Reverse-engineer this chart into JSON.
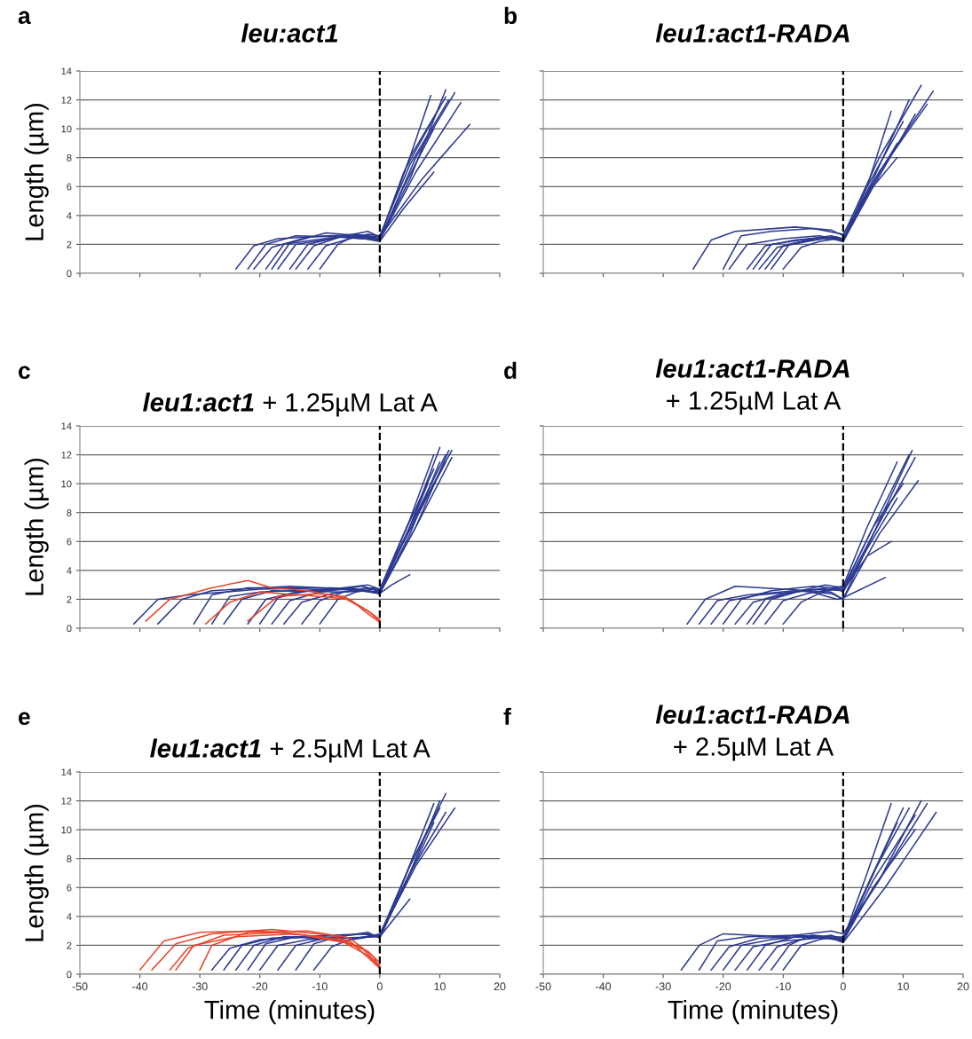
{
  "chart_data": [
    {
      "type": "line",
      "title": "leu:act1",
      "ylabel": "Length (µm)",
      "annotations": [
        "a"
      ],
      "xlim": [
        -50,
        20
      ],
      "xticks": [
        -50,
        -40,
        -30,
        -20,
        -10,
        0,
        10,
        20
      ],
      "ylim": [
        0,
        14
      ],
      "yticks": [
        0,
        2,
        4,
        6,
        8,
        10,
        12,
        14
      ],
      "tick_labels": "y",
      "grid": "y",
      "ref_lines": [
        {
          "axis": "x",
          "value": 0,
          "line_style": "dashed",
          "color": "#000000"
        }
      ],
      "series": [
        {
          "color": "#2b3990",
          "x": [
            -24,
            -21,
            -17,
            -8,
            0,
            5,
            11
          ],
          "values": [
            0.3,
            1.9,
            2.4,
            2.6,
            2.4,
            6.5,
            12.7
          ]
        },
        {
          "color": "#2b3990",
          "x": [
            -22,
            -19,
            -14,
            -6,
            0,
            6,
            13.5
          ],
          "values": [
            0.3,
            2.0,
            2.6,
            2.5,
            2.3,
            7,
            11.8
          ]
        },
        {
          "color": "#2b3990",
          "x": [
            -21,
            -18,
            -12,
            -4,
            0,
            7,
            15
          ],
          "values": [
            0.3,
            1.8,
            2.5,
            2.7,
            2.5,
            6.5,
            10.3
          ]
        },
        {
          "color": "#2b3990",
          "x": [
            -19,
            -16,
            -11,
            -5,
            0,
            4,
            9
          ],
          "values": [
            0.3,
            2.0,
            2.3,
            2.6,
            2.2,
            4.5,
            7
          ]
        },
        {
          "color": "#2b3990",
          "x": [
            -18,
            -15,
            -9,
            -3,
            0,
            5,
            8.5
          ],
          "values": [
            0.3,
            2.1,
            2.8,
            2.6,
            2.4,
            8,
            12.3
          ]
        },
        {
          "color": "#2b3990",
          "x": [
            -17,
            -14,
            -8,
            -2,
            0,
            5,
            11
          ],
          "values": [
            0.3,
            2.0,
            2.4,
            2.9,
            2.5,
            8,
            12.2
          ]
        },
        {
          "color": "#2b3990",
          "x": [
            -15,
            -12,
            -7,
            -3,
            0,
            6,
            12.5
          ],
          "values": [
            0.3,
            2.0,
            2.5,
            2.4,
            2.3,
            8,
            12.5
          ]
        },
        {
          "color": "#2b3990",
          "x": [
            -14,
            -11,
            -6,
            -2,
            0,
            4,
            10
          ],
          "values": [
            0.3,
            1.9,
            2.6,
            2.5,
            2.4,
            7,
            11.5
          ]
        },
        {
          "color": "#2b3990",
          "x": [
            -12,
            -9,
            -5,
            -2,
            0,
            5,
            11.5
          ],
          "values": [
            0.3,
            1.9,
            2.4,
            2.7,
            2.6,
            7.5,
            12
          ]
        },
        {
          "color": "#2b3990",
          "x": [
            -10,
            -7,
            -4,
            -1,
            0,
            4,
            9
          ],
          "values": [
            0.3,
            2.0,
            2.6,
            2.5,
            2.3,
            6,
            10
          ]
        }
      ]
    },
    {
      "type": "line",
      "title": "leu1:act1-RADA",
      "annotations": [
        "b"
      ],
      "xlim": [
        -50,
        20
      ],
      "xticks": [
        -50,
        -40,
        -30,
        -20,
        -10,
        0,
        10,
        20
      ],
      "ylim": [
        0,
        14
      ],
      "yticks": [
        0,
        2,
        4,
        6,
        8,
        10,
        12,
        14
      ],
      "tick_labels": false,
      "grid": "y",
      "ref_lines": [
        {
          "axis": "x",
          "value": 0,
          "line_style": "dashed",
          "color": "#000000"
        }
      ],
      "series": [
        {
          "color": "#2b3990",
          "x": [
            -25,
            -22,
            -18,
            -8,
            -2,
            0,
            6,
            13
          ],
          "values": [
            0.3,
            2.3,
            2.9,
            3.2,
            3.0,
            2.6,
            8,
            13
          ]
        },
        {
          "color": "#2b3990",
          "x": [
            -20,
            -17,
            -12,
            -5,
            0,
            6,
            15
          ],
          "values": [
            0.3,
            2.6,
            2.9,
            3.1,
            2.7,
            7,
            12.6
          ]
        },
        {
          "color": "#2b3990",
          "x": [
            -19,
            -16,
            -10,
            -4,
            0,
            6,
            14
          ],
          "values": [
            0.3,
            2.0,
            2.4,
            2.6,
            2.3,
            7,
            11.7
          ]
        },
        {
          "color": "#2b3990",
          "x": [
            -16,
            -13,
            -8,
            -3,
            0,
            4,
            8
          ],
          "values": [
            0.3,
            1.9,
            2.3,
            2.5,
            2.2,
            6,
            11.2
          ]
        },
        {
          "color": "#2b3990",
          "x": [
            -15,
            -12,
            -7,
            -2,
            0,
            5,
            11
          ],
          "values": [
            0.3,
            2.0,
            2.3,
            2.6,
            2.4,
            6.5,
            12
          ]
        },
        {
          "color": "#2b3990",
          "x": [
            -14,
            -11,
            -6,
            -2,
            0,
            5,
            9
          ],
          "values": [
            0.3,
            1.8,
            2.2,
            2.5,
            2.3,
            6,
            8
          ]
        },
        {
          "color": "#2b3990",
          "x": [
            -13,
            -10,
            -5,
            -1,
            0,
            5,
            12
          ],
          "values": [
            0.3,
            1.9,
            2.4,
            2.4,
            2.2,
            6,
            11
          ]
        },
        {
          "color": "#2b3990",
          "x": [
            -12,
            -9,
            -5,
            -1,
            0,
            4,
            10
          ],
          "values": [
            0.3,
            2.0,
            2.3,
            2.5,
            2.3,
            6,
            10.5
          ]
        },
        {
          "color": "#2b3990",
          "x": [
            -10,
            -7,
            -4,
            -1,
            0,
            4,
            9
          ],
          "values": [
            0.3,
            1.8,
            2.2,
            2.4,
            2.2,
            5.5,
            9
          ]
        }
      ]
    },
    {
      "type": "line",
      "title": "leu1:act1",
      "subtitle": "+ 1.25µM Lat A",
      "ylabel": "Length (µm)",
      "annotations": [
        "c"
      ],
      "xlim": [
        -50,
        20
      ],
      "xticks": [
        -50,
        -40,
        -30,
        -20,
        -10,
        0,
        10,
        20
      ],
      "ylim": [
        0,
        14
      ],
      "yticks": [
        0,
        2,
        4,
        6,
        8,
        10,
        12,
        14
      ],
      "tick_labels": "y",
      "grid": "y",
      "ref_lines": [
        {
          "axis": "x",
          "value": 0,
          "line_style": "dashed",
          "color": "#000000"
        }
      ],
      "series": [
        {
          "color": "#e8452c",
          "x": [
            -39,
            -35,
            -28,
            -22,
            -18,
            -12,
            -6,
            -2,
            0
          ],
          "values": [
            0.5,
            2.0,
            2.8,
            3.3,
            2.8,
            2.6,
            2.1,
            1.2,
            0.5
          ]
        },
        {
          "color": "#e8452c",
          "x": [
            -29,
            -25,
            -20,
            -10,
            -5,
            -2,
            0
          ],
          "values": [
            0.3,
            1.8,
            2.5,
            2.2,
            2.0,
            1.0,
            0.4
          ]
        },
        {
          "color": "#e8452c",
          "x": [
            -22,
            -17,
            -10,
            -6,
            -2,
            0
          ],
          "values": [
            0.5,
            2.2,
            2.4,
            2.2,
            1.2,
            0.6
          ]
        },
        {
          "color": "#2b3990",
          "x": [
            -41,
            -37,
            -32,
            -20,
            -8,
            0,
            5,
            10
          ],
          "values": [
            0.3,
            2.0,
            2.3,
            2.7,
            2.8,
            2.5,
            7,
            12.5
          ]
        },
        {
          "color": "#2b3990",
          "x": [
            -37,
            -33,
            -28,
            -15,
            -5,
            0,
            6,
            11.5
          ],
          "values": [
            0.3,
            2.0,
            2.6,
            2.9,
            2.7,
            2.4,
            7,
            12.3
          ]
        },
        {
          "color": "#2b3990",
          "x": [
            -31,
            -28,
            -22,
            -10,
            -3,
            0,
            6,
            12
          ],
          "values": [
            0.3,
            2.3,
            2.8,
            2.8,
            2.6,
            2.5,
            7,
            11.8
          ]
        },
        {
          "color": "#2b3990",
          "x": [
            -28,
            -25,
            -20,
            -8,
            -2,
            0,
            5,
            9
          ],
          "values": [
            0.3,
            2.2,
            2.5,
            2.7,
            3.0,
            2.7,
            7.5,
            12
          ]
        },
        {
          "color": "#2b3990",
          "x": [
            -26,
            -23,
            -18,
            -6,
            -1,
            0,
            4,
            11
          ],
          "values": [
            0.3,
            2.0,
            2.6,
            2.5,
            2.8,
            2.6,
            6,
            11.5
          ]
        },
        {
          "color": "#2b3990",
          "x": [
            -22,
            -19,
            -14,
            -5,
            0,
            2,
            5
          ],
          "values": [
            0.3,
            2.0,
            2.5,
            2.8,
            2.4,
            3.0,
            3.7
          ]
        },
        {
          "color": "#2b3990",
          "x": [
            -20,
            -17,
            -12,
            -4,
            0,
            5,
            10
          ],
          "values": [
            0.3,
            2.1,
            2.6,
            2.7,
            2.4,
            6.5,
            11.5
          ]
        },
        {
          "color": "#2b3990",
          "x": [
            -18,
            -15,
            -10,
            -3,
            0,
            4,
            8
          ],
          "values": [
            0.3,
            1.9,
            2.5,
            2.9,
            2.6,
            6,
            10
          ]
        },
        {
          "color": "#2b3990",
          "x": [
            -16,
            -13,
            -8,
            -2,
            0,
            5,
            11
          ],
          "values": [
            0.3,
            1.8,
            2.4,
            2.8,
            2.5,
            7,
            12
          ]
        },
        {
          "color": "#2b3990",
          "x": [
            -13,
            -10,
            -6,
            -2,
            0,
            4,
            9
          ],
          "values": [
            0.3,
            1.9,
            2.5,
            2.6,
            2.4,
            6.5,
            11
          ]
        },
        {
          "color": "#2b3990",
          "x": [
            -10,
            -7,
            -4,
            -1,
            0,
            5,
            12
          ],
          "values": [
            0.3,
            2.0,
            2.5,
            2.7,
            2.6,
            7,
            12.3
          ]
        }
      ]
    },
    {
      "type": "line",
      "title": "leu1:act1-RADA",
      "subtitle": "+ 1.25µM Lat A",
      "annotations": [
        "d"
      ],
      "xlim": [
        -50,
        20
      ],
      "xticks": [
        -50,
        -40,
        -30,
        -20,
        -10,
        0,
        10,
        20
      ],
      "ylim": [
        0,
        14
      ],
      "yticks": [
        0,
        2,
        4,
        6,
        8,
        10,
        12,
        14
      ],
      "tick_labels": false,
      "grid": "y",
      "ref_lines": [
        {
          "axis": "x",
          "value": 0,
          "line_style": "dashed",
          "color": "#000000"
        }
      ],
      "series": [
        {
          "color": "#2b3990",
          "x": [
            -26,
            -23,
            -18,
            -10,
            -2,
            0,
            5,
            11.5
          ],
          "values": [
            0.3,
            2.0,
            2.9,
            2.7,
            2.5,
            2.0,
            6.5,
            12.3
          ]
        },
        {
          "color": "#2b3990",
          "x": [
            -24,
            -21,
            -16,
            -8,
            -2,
            0,
            6,
            12.5
          ],
          "values": [
            0.3,
            1.9,
            2.3,
            2.6,
            2.4,
            2.0,
            6.5,
            10.2
          ]
        },
        {
          "color": "#2b3990",
          "x": [
            -22,
            -19,
            -14,
            -6,
            -1,
            0,
            7
          ],
          "values": [
            0.3,
            1.9,
            2.3,
            2.6,
            2.0,
            2.1,
            3.5
          ]
        },
        {
          "color": "#2b3990",
          "x": [
            -20,
            -17,
            -12,
            -5,
            0,
            5,
            11
          ],
          "values": [
            0.3,
            2.0,
            2.6,
            2.9,
            2.7,
            7,
            12
          ]
        },
        {
          "color": "#2b3990",
          "x": [
            -18,
            -15,
            -10,
            -4,
            0,
            4,
            8
          ],
          "values": [
            0.3,
            1.8,
            2.4,
            2.7,
            2.6,
            5,
            6
          ]
        },
        {
          "color": "#2b3990",
          "x": [
            -16,
            -13,
            -8,
            -3,
            0,
            5,
            10
          ],
          "values": [
            0.3,
            2.0,
            2.5,
            3.0,
            2.8,
            7,
            10
          ]
        },
        {
          "color": "#2b3990",
          "x": [
            -15,
            -12,
            -7,
            -2,
            0,
            4,
            9
          ],
          "values": [
            0.3,
            2.0,
            2.6,
            2.8,
            2.9,
            7,
            11.5
          ]
        },
        {
          "color": "#2b3990",
          "x": [
            -13,
            -10,
            -6,
            -2,
            0,
            5,
            12
          ],
          "values": [
            0.3,
            1.9,
            2.4,
            2.7,
            2.6,
            6.5,
            11.8
          ]
        },
        {
          "color": "#2b3990",
          "x": [
            -10,
            -7,
            -4,
            -1,
            0,
            4,
            9
          ],
          "values": [
            0.3,
            1.8,
            2.4,
            2.8,
            2.5,
            5.5,
            9
          ]
        }
      ]
    },
    {
      "type": "line",
      "title": "leu1:act1",
      "subtitle": "+ 2.5µM Lat A",
      "xlabel": "Time (minutes)",
      "ylabel": "Length (µm)",
      "annotations": [
        "e"
      ],
      "xlim": [
        -50,
        20
      ],
      "xticks": [
        -50,
        -40,
        -30,
        -20,
        -10,
        0,
        10,
        20
      ],
      "ylim": [
        0,
        14
      ],
      "yticks": [
        0,
        2,
        4,
        6,
        8,
        10,
        12,
        14
      ],
      "grid": "y",
      "ref_lines": [
        {
          "axis": "x",
          "value": 0,
          "line_style": "dashed",
          "color": "#000000"
        }
      ],
      "series": [
        {
          "color": "#e8452c",
          "x": [
            -40,
            -36,
            -30,
            -20,
            -10,
            -5,
            0
          ],
          "values": [
            0.3,
            2.3,
            2.9,
            3.0,
            2.6,
            2.3,
            0.4
          ]
        },
        {
          "color": "#e8452c",
          "x": [
            -38,
            -34,
            -28,
            -18,
            -8,
            -3,
            0
          ],
          "values": [
            0.3,
            2.1,
            2.8,
            3.1,
            2.7,
            1.8,
            0.6
          ]
        },
        {
          "color": "#e8452c",
          "x": [
            -35,
            -32,
            -26,
            -16,
            -7,
            -2,
            0
          ],
          "values": [
            0.3,
            1.8,
            2.7,
            2.9,
            2.4,
            1.6,
            0.8
          ]
        },
        {
          "color": "#e8452c",
          "x": [
            -34,
            -31,
            -24,
            -14,
            -6,
            -2,
            0
          ],
          "values": [
            0.3,
            2.0,
            2.6,
            2.8,
            2.2,
            1.3,
            0.5
          ]
        },
        {
          "color": "#e8452c",
          "x": [
            -30,
            -28,
            -22,
            -12,
            -5,
            -1,
            0
          ],
          "values": [
            0.3,
            2.0,
            2.9,
            3.0,
            2.5,
            1.2,
            0.4
          ]
        },
        {
          "color": "#2b3990",
          "x": [
            -28,
            -25,
            -20,
            -10,
            -3,
            0,
            5,
            10
          ],
          "values": [
            0.3,
            1.8,
            2.4,
            2.6,
            2.5,
            2.8,
            7,
            12
          ]
        },
        {
          "color": "#2b3990",
          "x": [
            -26,
            -23,
            -18,
            -8,
            -2,
            0,
            5,
            11
          ],
          "values": [
            0.3,
            2.0,
            2.5,
            2.7,
            2.8,
            2.6,
            7.5,
            12.5
          ]
        },
        {
          "color": "#2b3990",
          "x": [
            -24,
            -21,
            -16,
            -7,
            0,
            5
          ],
          "values": [
            0.3,
            2.0,
            2.6,
            2.5,
            2.6,
            5.2
          ]
        },
        {
          "color": "#2b3990",
          "x": [
            -22,
            -19,
            -14,
            -6,
            0,
            6,
            12.5
          ],
          "values": [
            0.3,
            2.1,
            2.6,
            2.3,
            2.7,
            7.5,
            11.5
          ]
        },
        {
          "color": "#2b3990",
          "x": [
            -20,
            -17,
            -12,
            -4,
            0,
            5,
            10
          ],
          "values": [
            0.3,
            2.0,
            2.4,
            2.5,
            2.7,
            7.5,
            11.5
          ]
        },
        {
          "color": "#2b3990",
          "x": [
            -17,
            -14,
            -9,
            -3,
            0,
            4,
            9
          ],
          "values": [
            0.3,
            2.0,
            2.5,
            2.8,
            2.6,
            6.5,
            11.8
          ]
        },
        {
          "color": "#2b3990",
          "x": [
            -14,
            -11,
            -7,
            -2,
            0,
            5,
            11
          ],
          "values": [
            0.3,
            2.1,
            2.6,
            2.9,
            2.5,
            7,
            11.2
          ]
        },
        {
          "color": "#2b3990",
          "x": [
            -11,
            -8,
            -5,
            -1,
            0,
            4,
            9
          ],
          "values": [
            0.3,
            1.9,
            2.4,
            2.7,
            2.6,
            6,
            10.5
          ]
        }
      ]
    },
    {
      "type": "line",
      "title": "leu1:act1-RADA",
      "subtitle": "+ 2.5µM Lat A",
      "xlabel": "Time (minutes)",
      "annotations": [
        "f"
      ],
      "xlim": [
        -50,
        20
      ],
      "xticks": [
        -50,
        -40,
        -30,
        -20,
        -10,
        0,
        10,
        20
      ],
      "ylim": [
        0,
        14
      ],
      "yticks": [
        0,
        2,
        4,
        6,
        8,
        10,
        12,
        14
      ],
      "tick_labels": "x",
      "grid": "y",
      "ref_lines": [
        {
          "axis": "x",
          "value": 0,
          "line_style": "dashed",
          "color": "#000000"
        }
      ],
      "series": [
        {
          "color": "#2b3990",
          "x": [
            -27,
            -24,
            -20,
            -10,
            -2,
            0,
            6,
            13
          ],
          "values": [
            0.3,
            2.0,
            2.8,
            2.6,
            3.0,
            2.8,
            6.5,
            12
          ]
        },
        {
          "color": "#2b3990",
          "x": [
            -24,
            -21,
            -16,
            -8,
            -2,
            0,
            7,
            15.5
          ],
          "values": [
            0.3,
            2.3,
            2.6,
            2.7,
            2.5,
            2.2,
            6,
            11.2
          ]
        },
        {
          "color": "#2b3990",
          "x": [
            -22,
            -19,
            -14,
            -6,
            0,
            4,
            8
          ],
          "values": [
            0.3,
            1.9,
            2.5,
            2.6,
            2.4,
            7,
            11.8
          ]
        },
        {
          "color": "#2b3990",
          "x": [
            -20,
            -17,
            -12,
            -5,
            0,
            5,
            10
          ],
          "values": [
            0.3,
            2.0,
            2.4,
            2.7,
            2.5,
            7,
            11.5
          ]
        },
        {
          "color": "#2b3990",
          "x": [
            -18,
            -15,
            -10,
            -4,
            0,
            6,
            14
          ],
          "values": [
            0.3,
            1.9,
            2.3,
            2.5,
            2.6,
            6.5,
            11.8
          ]
        },
        {
          "color": "#2b3990",
          "x": [
            -16,
            -13,
            -8,
            -3,
            0,
            5,
            12
          ],
          "values": [
            0.3,
            2.0,
            2.6,
            2.5,
            2.3,
            6,
            10
          ]
        },
        {
          "color": "#2b3990",
          "x": [
            -14,
            -11,
            -7,
            -2,
            0,
            5,
            11
          ],
          "values": [
            0.3,
            1.9,
            2.4,
            2.7,
            2.4,
            7,
            11.5
          ]
        },
        {
          "color": "#2b3990",
          "x": [
            -12,
            -9,
            -6,
            -2,
            0,
            4,
            9
          ],
          "values": [
            0.3,
            2.0,
            2.6,
            2.5,
            2.4,
            6,
            10.5
          ]
        },
        {
          "color": "#2b3990",
          "x": [
            -10,
            -7,
            -4,
            -1,
            0,
            5,
            12
          ],
          "values": [
            0.3,
            2.0,
            2.4,
            2.6,
            2.3,
            6.5,
            11
          ]
        }
      ]
    }
  ]
}
